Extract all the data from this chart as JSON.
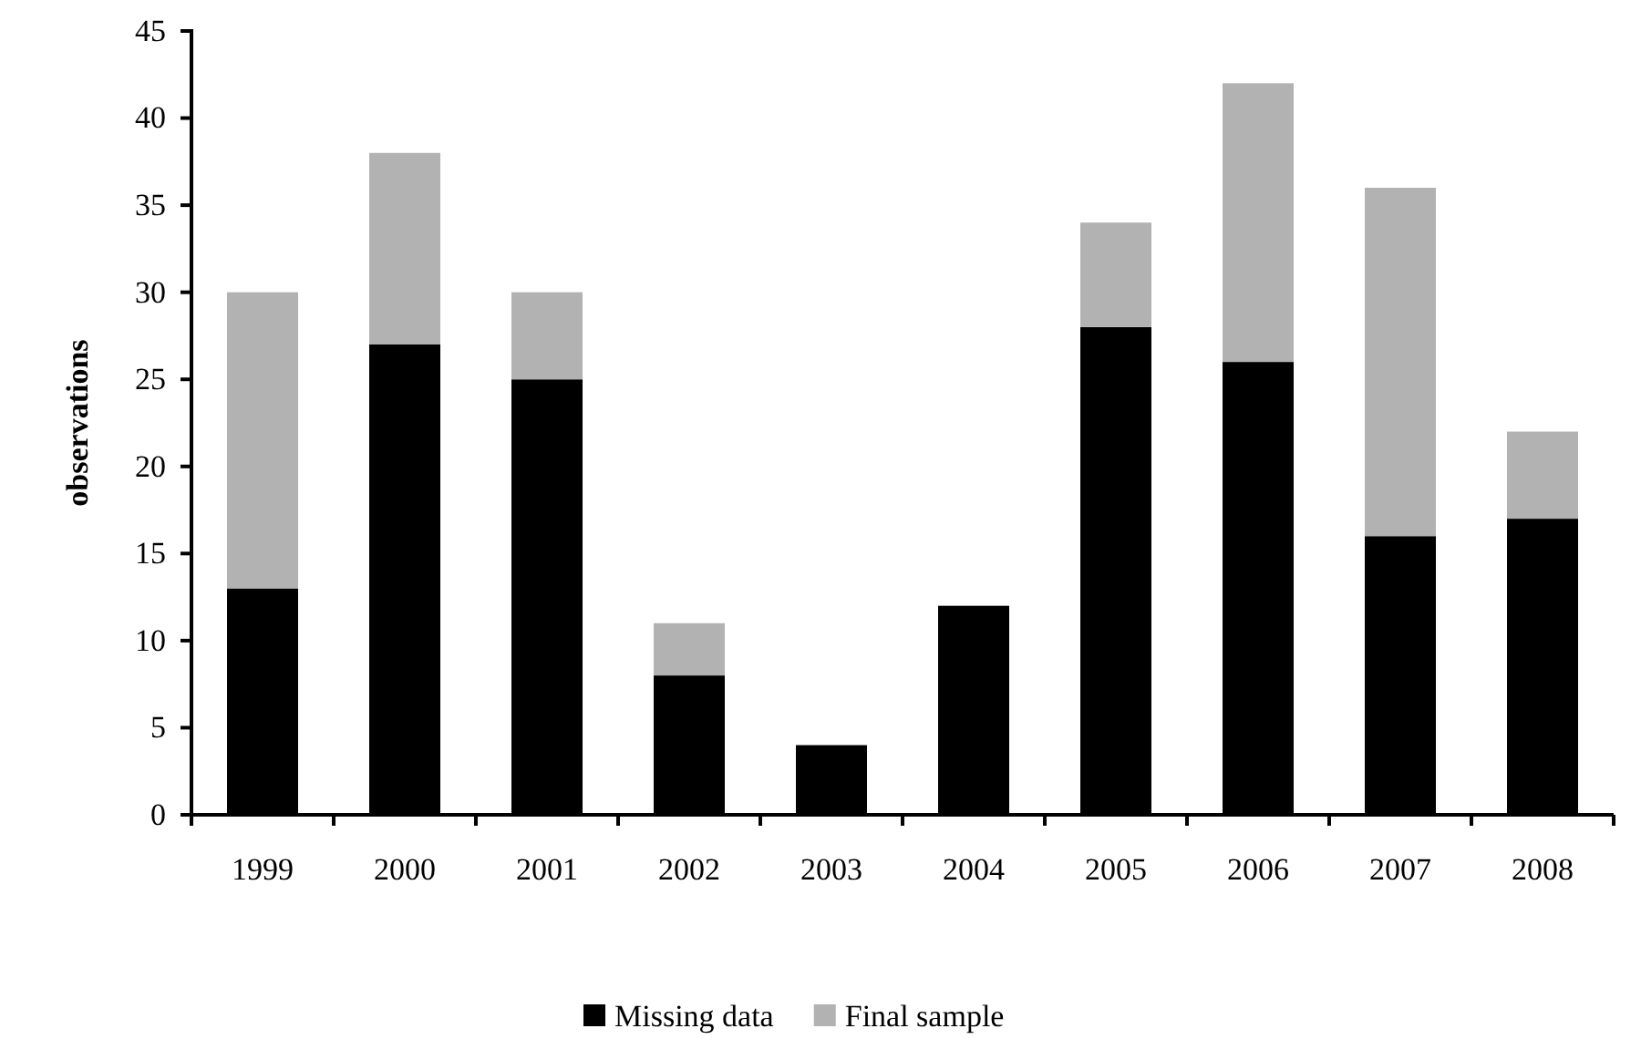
{
  "chart_data": {
    "type": "bar",
    "stacked": true,
    "ylabel": "observations",
    "categories": [
      "1999",
      "2000",
      "2001",
      "2002",
      "2003",
      "2004",
      "2005",
      "2006",
      "2007",
      "2008"
    ],
    "series": [
      {
        "name": "Missing data",
        "color": "#000000",
        "values": [
          13,
          27,
          25,
          8,
          4,
          12,
          28,
          26,
          16,
          17
        ]
      },
      {
        "name": "Final sample",
        "color": "#b2b2b2",
        "values": [
          17,
          11,
          5,
          3,
          0,
          0,
          6,
          16,
          20,
          5
        ]
      }
    ],
    "ylim": [
      0,
      45
    ],
    "yticks": [
      0,
      5,
      10,
      15,
      20,
      25,
      30,
      35,
      40,
      45
    ],
    "grid": false,
    "legend": "bottom"
  }
}
